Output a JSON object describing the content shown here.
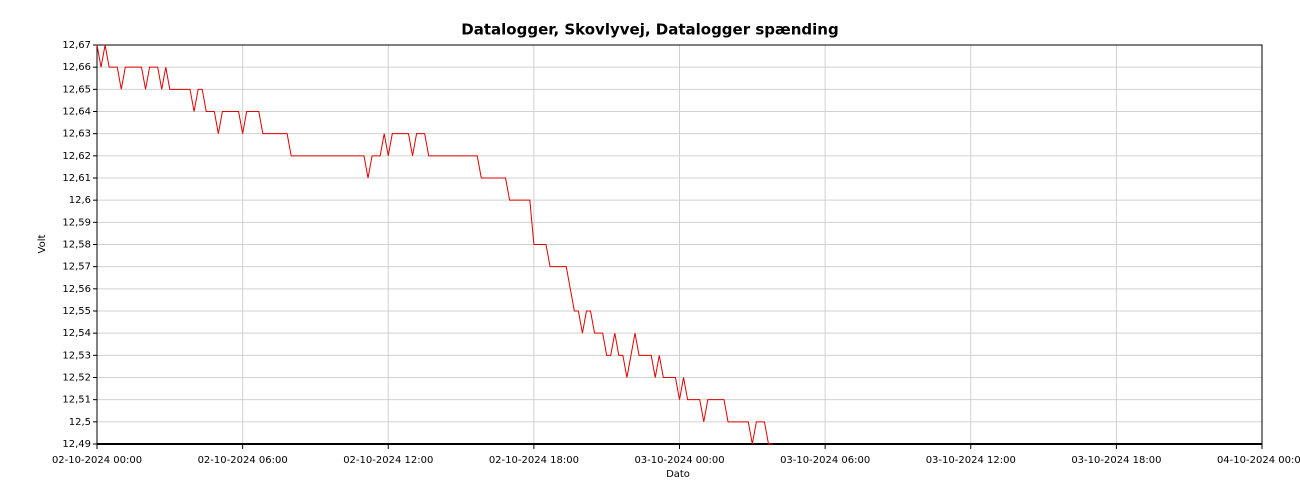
{
  "chart_data": {
    "type": "line",
    "title": "Datalogger, Skovlyvej, Datalogger spænding",
    "xlabel": "Dato",
    "ylabel": "Volt",
    "xlim": [
      "2024-10-02T00:00",
      "2024-10-04T00:00"
    ],
    "xticks": [
      {
        "value": "2024-10-02T00:00",
        "label": "02-10-2024 00:00"
      },
      {
        "value": "2024-10-02T06:00",
        "label": "02-10-2024 06:00"
      },
      {
        "value": "2024-10-02T12:00",
        "label": "02-10-2024 12:00"
      },
      {
        "value": "2024-10-02T18:00",
        "label": "02-10-2024 18:00"
      },
      {
        "value": "2024-10-03T00:00",
        "label": "03-10-2024 00:00"
      },
      {
        "value": "2024-10-03T06:00",
        "label": "03-10-2024 06:00"
      },
      {
        "value": "2024-10-03T12:00",
        "label": "03-10-2024 12:00"
      },
      {
        "value": "2024-10-03T18:00",
        "label": "03-10-2024 18:00"
      },
      {
        "value": "2024-10-04T00:00",
        "label": "04-10-2024 00:00"
      }
    ],
    "ylim": [
      12.49,
      12.67
    ],
    "yticks": [
      {
        "value": 12.49,
        "label": "12,49"
      },
      {
        "value": 12.5,
        "label": "12,5"
      },
      {
        "value": 12.51,
        "label": "12,51"
      },
      {
        "value": 12.52,
        "label": "12,52"
      },
      {
        "value": 12.53,
        "label": "12,53"
      },
      {
        "value": 12.54,
        "label": "12,54"
      },
      {
        "value": 12.55,
        "label": "12,55"
      },
      {
        "value": 12.56,
        "label": "12,56"
      },
      {
        "value": 12.57,
        "label": "12,57"
      },
      {
        "value": 12.58,
        "label": "12,58"
      },
      {
        "value": 12.59,
        "label": "12,59"
      },
      {
        "value": 12.6,
        "label": "12,6"
      },
      {
        "value": 12.61,
        "label": "12,61"
      },
      {
        "value": 12.62,
        "label": "12,62"
      },
      {
        "value": 12.63,
        "label": "12,63"
      },
      {
        "value": 12.64,
        "label": "12,64"
      },
      {
        "value": 12.65,
        "label": "12,65"
      },
      {
        "value": 12.66,
        "label": "12,66"
      },
      {
        "value": 12.67,
        "label": "12,67"
      }
    ],
    "grid": true,
    "color": "#e00000",
    "x": [
      "2024-10-02T00:00",
      "2024-10-02T00:10",
      "2024-10-02T00:20",
      "2024-10-02T00:30",
      "2024-10-02T00:40",
      "2024-10-02T00:50",
      "2024-10-02T01:00",
      "2024-10-02T01:10",
      "2024-10-02T01:20",
      "2024-10-02T01:30",
      "2024-10-02T01:40",
      "2024-10-02T01:50",
      "2024-10-02T02:00",
      "2024-10-02T02:10",
      "2024-10-02T02:20",
      "2024-10-02T02:30",
      "2024-10-02T02:40",
      "2024-10-02T02:50",
      "2024-10-02T03:00",
      "2024-10-02T03:10",
      "2024-10-02T03:20",
      "2024-10-02T03:30",
      "2024-10-02T03:40",
      "2024-10-02T03:50",
      "2024-10-02T04:00",
      "2024-10-02T04:10",
      "2024-10-02T04:20",
      "2024-10-02T04:30",
      "2024-10-02T04:40",
      "2024-10-02T04:50",
      "2024-10-02T05:00",
      "2024-10-02T05:10",
      "2024-10-02T05:20",
      "2024-10-02T05:30",
      "2024-10-02T05:40",
      "2024-10-02T05:50",
      "2024-10-02T06:00",
      "2024-10-02T06:10",
      "2024-10-02T06:20",
      "2024-10-02T06:30",
      "2024-10-02T06:40",
      "2024-10-02T06:50",
      "2024-10-02T07:00",
      "2024-10-02T07:10",
      "2024-10-02T07:20",
      "2024-10-02T07:30",
      "2024-10-02T07:40",
      "2024-10-02T07:50",
      "2024-10-02T08:00",
      "2024-10-02T08:10",
      "2024-10-02T08:20",
      "2024-10-02T08:30",
      "2024-10-02T08:40",
      "2024-10-02T08:50",
      "2024-10-02T09:00",
      "2024-10-02T09:10",
      "2024-10-02T09:20",
      "2024-10-02T09:30",
      "2024-10-02T09:40",
      "2024-10-02T09:50",
      "2024-10-02T10:00",
      "2024-10-02T10:10",
      "2024-10-02T10:20",
      "2024-10-02T10:30",
      "2024-10-02T10:40",
      "2024-10-02T10:50",
      "2024-10-02T11:00",
      "2024-10-02T11:10",
      "2024-10-02T11:20",
      "2024-10-02T11:30",
      "2024-10-02T11:40",
      "2024-10-02T11:50",
      "2024-10-02T12:00",
      "2024-10-02T12:10",
      "2024-10-02T12:20",
      "2024-10-02T12:30",
      "2024-10-02T12:40",
      "2024-10-02T12:50",
      "2024-10-02T13:00",
      "2024-10-02T13:10",
      "2024-10-02T13:20",
      "2024-10-02T13:30",
      "2024-10-02T13:40",
      "2024-10-02T13:50",
      "2024-10-02T14:00",
      "2024-10-02T14:10",
      "2024-10-02T14:20",
      "2024-10-02T14:30",
      "2024-10-02T14:40",
      "2024-10-02T14:50",
      "2024-10-02T15:00",
      "2024-10-02T15:10",
      "2024-10-02T15:20",
      "2024-10-02T15:30",
      "2024-10-02T15:40",
      "2024-10-02T15:50",
      "2024-10-02T16:00",
      "2024-10-02T16:10",
      "2024-10-02T16:20",
      "2024-10-02T16:30",
      "2024-10-02T16:40",
      "2024-10-02T16:50",
      "2024-10-02T17:00",
      "2024-10-02T17:10",
      "2024-10-02T17:20",
      "2024-10-02T17:30",
      "2024-10-02T17:40",
      "2024-10-02T17:50",
      "2024-10-02T18:00",
      "2024-10-02T18:10",
      "2024-10-02T18:20",
      "2024-10-02T18:30",
      "2024-10-02T18:40",
      "2024-10-02T18:50",
      "2024-10-02T19:00",
      "2024-10-02T19:10",
      "2024-10-02T19:20",
      "2024-10-02T19:30",
      "2024-10-02T19:40",
      "2024-10-02T19:50",
      "2024-10-02T20:00",
      "2024-10-02T20:10",
      "2024-10-02T20:20",
      "2024-10-02T20:30",
      "2024-10-02T20:40",
      "2024-10-02T20:50",
      "2024-10-02T21:00",
      "2024-10-02T21:10",
      "2024-10-02T21:20",
      "2024-10-02T21:30",
      "2024-10-02T21:40",
      "2024-10-02T21:50",
      "2024-10-02T22:00",
      "2024-10-02T22:10",
      "2024-10-02T22:20",
      "2024-10-02T22:30",
      "2024-10-02T22:40",
      "2024-10-02T22:50",
      "2024-10-02T23:00",
      "2024-10-02T23:10",
      "2024-10-02T23:20",
      "2024-10-02T23:30",
      "2024-10-02T23:40",
      "2024-10-02T23:50",
      "2024-10-03T00:00",
      "2024-10-03T00:10",
      "2024-10-03T00:20",
      "2024-10-03T00:30",
      "2024-10-03T00:40",
      "2024-10-03T00:50",
      "2024-10-03T01:00",
      "2024-10-03T01:10",
      "2024-10-03T01:20",
      "2024-10-03T01:30",
      "2024-10-03T01:40",
      "2024-10-03T01:50",
      "2024-10-03T02:00",
      "2024-10-03T02:10",
      "2024-10-03T02:20",
      "2024-10-03T02:30",
      "2024-10-03T02:40",
      "2024-10-03T02:50",
      "2024-10-03T03:00",
      "2024-10-03T03:10",
      "2024-10-03T03:20",
      "2024-10-03T03:30",
      "2024-10-03T03:40",
      "2024-10-03T03:50"
    ],
    "values": [
      12.67,
      12.66,
      12.67,
      12.66,
      12.66,
      12.66,
      12.65,
      12.66,
      12.66,
      12.66,
      12.66,
      12.66,
      12.65,
      12.66,
      12.66,
      12.66,
      12.65,
      12.66,
      12.65,
      12.65,
      12.65,
      12.65,
      12.65,
      12.65,
      12.64,
      12.65,
      12.65,
      12.64,
      12.64,
      12.64,
      12.63,
      12.64,
      12.64,
      12.64,
      12.64,
      12.64,
      12.63,
      12.64,
      12.64,
      12.64,
      12.64,
      12.63,
      12.63,
      12.63,
      12.63,
      12.63,
      12.63,
      12.63,
      12.62,
      12.62,
      12.62,
      12.62,
      12.62,
      12.62,
      12.62,
      12.62,
      12.62,
      12.62,
      12.62,
      12.62,
      12.62,
      12.62,
      12.62,
      12.62,
      12.62,
      12.62,
      12.62,
      12.61,
      12.62,
      12.62,
      12.62,
      12.63,
      12.62,
      12.63,
      12.63,
      12.63,
      12.63,
      12.63,
      12.62,
      12.63,
      12.63,
      12.63,
      12.62,
      12.62,
      12.62,
      12.62,
      12.62,
      12.62,
      12.62,
      12.62,
      12.62,
      12.62,
      12.62,
      12.62,
      12.62,
      12.61,
      12.61,
      12.61,
      12.61,
      12.61,
      12.61,
      12.61,
      12.6,
      12.6,
      12.6,
      12.6,
      12.6,
      12.6,
      12.58,
      12.58,
      12.58,
      12.58,
      12.57,
      12.57,
      12.57,
      12.57,
      12.57,
      12.56,
      12.55,
      12.55,
      12.54,
      12.55,
      12.55,
      12.54,
      12.54,
      12.54,
      12.53,
      12.53,
      12.54,
      12.53,
      12.53,
      12.52,
      12.53,
      12.54,
      12.53,
      12.53,
      12.53,
      12.53,
      12.52,
      12.53,
      12.52,
      12.52,
      12.52,
      12.52,
      12.51,
      12.52,
      12.51,
      12.51,
      12.51,
      12.51,
      12.5,
      12.51,
      12.51,
      12.51,
      12.51,
      12.51,
      12.5,
      12.5,
      12.5,
      12.5,
      12.5,
      12.5,
      12.49,
      12.5,
      12.5,
      12.5,
      12.49,
      12.49
    ]
  }
}
